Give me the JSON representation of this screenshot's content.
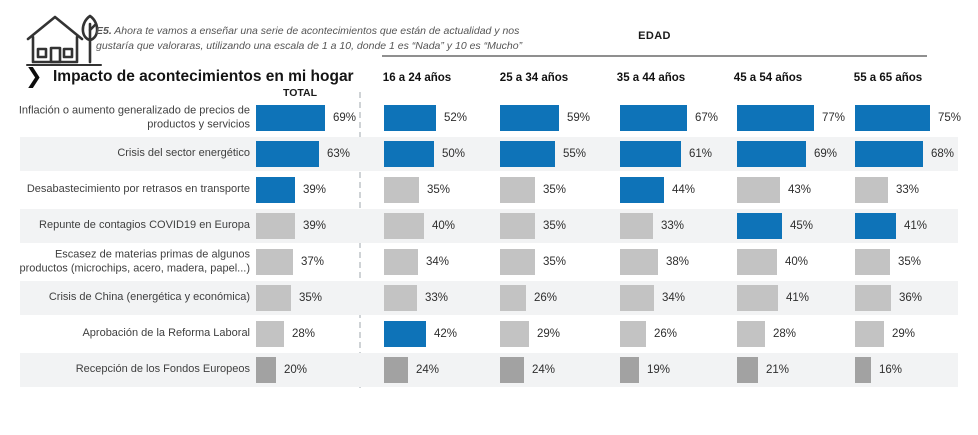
{
  "header": {
    "question_prefix": "E5.",
    "question_text": " Ahora te vamos a enseñar una serie de acontecimientos que están de actualidad y nos gustaría que valoraras, utilizando una escala de 1 a 10, donde 1 es “Nada” y 10 es “Mucho”",
    "edad_label": "EDAD",
    "title": "Impacto de acontecimientos en mi hogar",
    "total_label": "TOTAL",
    "house_icon": "house-with-tree-icon",
    "chevron_icon": "chevron-right-icon"
  },
  "columns": [
    "16 a 24 años",
    "25 a 34 años",
    "35 a 44 años",
    "45 a 54 años",
    "55 a 65 años"
  ],
  "colors": {
    "bar_highlight": "#0e73b8",
    "bar_muted": "#c3c3c3",
    "bar_muted_dark": "#a2a2a2",
    "row_shade": "#f2f3f4"
  },
  "chart_data": {
    "type": "bar",
    "title": "Impacto de acontecimientos en mi hogar",
    "unit": "%",
    "orientation": "horizontal",
    "value_range": [
      0,
      100
    ],
    "legend": "none",
    "note": "styles: h=highlight blue, m=muted gray, d=dark gray",
    "categories": [
      "Inflación o aumento generalizado de precios de productos y servicios",
      "Crisis del sector energético",
      "Desabastecimiento por retrasos en transporte",
      "Repunte de contagios COVID19 en Europa",
      "Escasez de materias primas de algunos productos (microchips, acero, madera, papel...)",
      "Crisis de China (energética y económica)",
      "Aprobación de la Reforma Laboral",
      "Recepción de los Fondos Europeos"
    ],
    "series": [
      {
        "name": "TOTAL",
        "values": [
          69,
          63,
          39,
          39,
          37,
          35,
          28,
          20
        ],
        "styles": [
          "h",
          "h",
          "h",
          "m",
          "m",
          "m",
          "m",
          "d"
        ]
      },
      {
        "name": "16 a 24 años",
        "values": [
          52,
          50,
          35,
          40,
          34,
          33,
          42,
          24
        ],
        "styles": [
          "h",
          "h",
          "m",
          "m",
          "m",
          "m",
          "h",
          "d"
        ]
      },
      {
        "name": "25 a 34 años",
        "values": [
          59,
          55,
          35,
          35,
          35,
          26,
          29,
          24
        ],
        "styles": [
          "h",
          "h",
          "m",
          "m",
          "m",
          "m",
          "m",
          "d"
        ]
      },
      {
        "name": "35 a 44 años",
        "values": [
          67,
          61,
          44,
          33,
          38,
          34,
          26,
          19
        ],
        "styles": [
          "h",
          "h",
          "h",
          "m",
          "m",
          "m",
          "m",
          "d"
        ]
      },
      {
        "name": "45 a 54 años",
        "values": [
          77,
          69,
          43,
          45,
          40,
          41,
          28,
          21
        ],
        "styles": [
          "h",
          "h",
          "m",
          "h",
          "m",
          "m",
          "m",
          "d"
        ]
      },
      {
        "name": "55 a 65 años",
        "values": [
          75,
          68,
          33,
          41,
          35,
          36,
          29,
          16
        ],
        "styles": [
          "h",
          "h",
          "m",
          "h",
          "m",
          "m",
          "m",
          "d"
        ]
      }
    ]
  }
}
